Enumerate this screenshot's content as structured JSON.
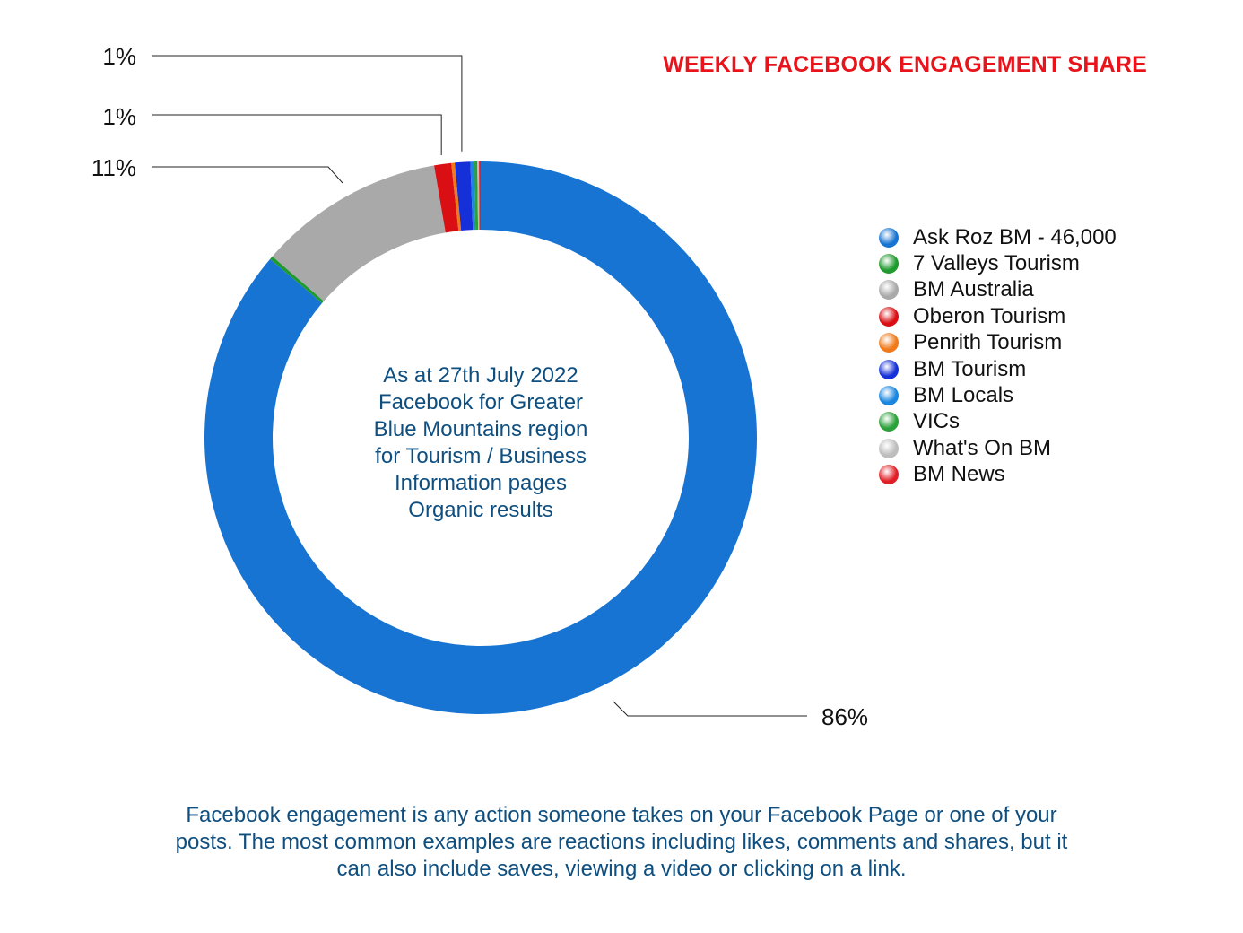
{
  "chart_data": {
    "type": "pie",
    "title": "WEEKLY FACEBOOK ENGAGEMENT SHARE",
    "center_text": [
      "As at 27th July 2022",
      "Facebook for Greater",
      "Blue Mountains region",
      "for Tourism / Business",
      "Information pages",
      "Organic results"
    ],
    "legend_position": "right",
    "series": [
      {
        "name": "Ask Roz BM - 46,000",
        "value": 86.2,
        "color": "#1874d2"
      },
      {
        "name": "7 Valleys Tourism",
        "value": 0.2,
        "color": "#1e9a2e"
      },
      {
        "name": "BM Australia",
        "value": 10.9,
        "color": "#a9a9a9"
      },
      {
        "name": "Oberon Tourism",
        "value": 1.0,
        "color": "#d90f14"
      },
      {
        "name": "Penrith Tourism",
        "value": 0.2,
        "color": "#f07a1a"
      },
      {
        "name": "BM Tourism",
        "value": 0.9,
        "color": "#1530d8"
      },
      {
        "name": "BM Locals",
        "value": 0.2,
        "color": "#1a86e0"
      },
      {
        "name": "VICs",
        "value": 0.2,
        "color": "#2aa13a"
      },
      {
        "name": "What's On BM",
        "value": 0.1,
        "color": "#bdbdbd"
      },
      {
        "name": "BM News",
        "value": 0.1,
        "color": "#e02028"
      }
    ],
    "data_labels": [
      {
        "text": "86%",
        "series": "Ask Roz BM - 46,000"
      },
      {
        "text": "11%",
        "series": "BM Australia"
      },
      {
        "text": "1%",
        "series": "Oberon Tourism"
      },
      {
        "text": "1%",
        "series": "BM Tourism"
      }
    ]
  },
  "footer": [
    "Facebook engagement is any action someone takes on your Facebook Page or one of your",
    "posts. The most common examples are reactions including likes, comments and shares, but it",
    "can also include saves, viewing a video or clicking on a link."
  ]
}
